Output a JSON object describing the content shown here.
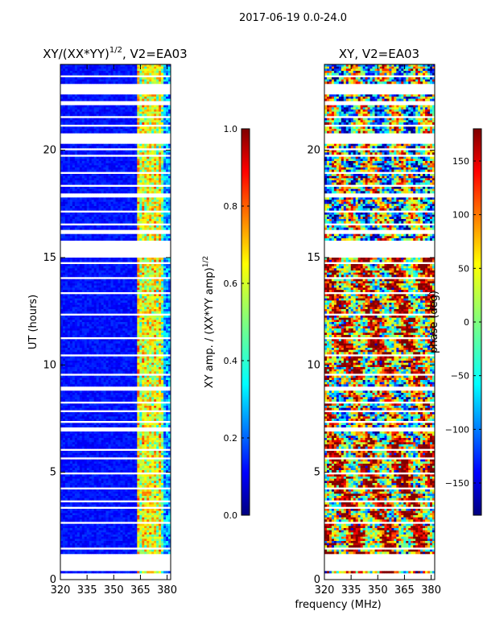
{
  "chart_data": {
    "type": "heatmap",
    "suptitle": "2017-06-19 0.0-24.0",
    "xlabel": "frequency (MHz)",
    "panels": [
      {
        "id": "amp",
        "title": "XY/(XX*YY)",
        "title_sup": "1/2",
        "title_suffix": ", V2=EA03",
        "ylabel": "UT (hours)",
        "xlim": [
          320,
          382
        ],
        "ylim": [
          0,
          24
        ],
        "xticks": [
          320,
          335,
          350,
          365,
          380
        ],
        "yticks": [
          0,
          5,
          10,
          15,
          20
        ],
        "colorbar": {
          "label": "XY amp. / (XX*YY amp)",
          "label_sup": "1/2",
          "range": [
            0.0,
            1.0
          ],
          "ticks": [
            "0.0",
            "0.2",
            "0.4",
            "0.6",
            "0.8",
            "1.0"
          ],
          "tick_values": [
            0.0,
            0.2,
            0.4,
            0.6,
            0.8,
            1.0
          ],
          "colormap": "jet"
        }
      },
      {
        "id": "phase",
        "title": "XY, V2=EA03",
        "ylabel": "phase (deg)",
        "xlim": [
          320,
          382
        ],
        "ylim": [
          0,
          24
        ],
        "xticks": [
          320,
          335,
          350,
          365,
          380
        ],
        "yticks": [
          0,
          5,
          10,
          15,
          20
        ],
        "colorbar": {
          "label": "phase (deg)",
          "range": [
            -180,
            180
          ],
          "ticks": [
            "−150",
            "−100",
            "−50",
            "0",
            "50",
            "100",
            "150"
          ],
          "tick_values": [
            -150,
            -100,
            -50,
            0,
            50,
            100,
            150
          ],
          "colormap": "jet"
        }
      }
    ],
    "blank_ut_intervals": [
      [
        0.0,
        0.3
      ],
      [
        0.4,
        1.2
      ],
      [
        1.4,
        1.5
      ],
      [
        2.6,
        2.7
      ],
      [
        3.3,
        3.4
      ],
      [
        3.6,
        3.7
      ],
      [
        4.2,
        4.3
      ],
      [
        4.9,
        5.0
      ],
      [
        5.6,
        5.7
      ],
      [
        6.0,
        6.1
      ],
      [
        6.9,
        7.1
      ],
      [
        7.3,
        7.4
      ],
      [
        7.8,
        7.9
      ],
      [
        8.2,
        8.3
      ],
      [
        8.8,
        9.0
      ],
      [
        9.5,
        9.6
      ],
      [
        10.4,
        10.5
      ],
      [
        11.2,
        11.3
      ],
      [
        12.3,
        12.4
      ],
      [
        13.3,
        13.4
      ],
      [
        14.0,
        14.1
      ],
      [
        14.7,
        14.8
      ],
      [
        15.0,
        15.8
      ],
      [
        16.1,
        16.3
      ],
      [
        16.5,
        16.6
      ],
      [
        17.1,
        17.2
      ],
      [
        17.8,
        18.0
      ],
      [
        18.3,
        18.4
      ],
      [
        18.9,
        19.0
      ],
      [
        19.7,
        19.8
      ],
      [
        20.0,
        20.1
      ],
      [
        20.3,
        20.8
      ],
      [
        21.1,
        21.2
      ],
      [
        21.5,
        21.6
      ],
      [
        22.1,
        22.3
      ],
      [
        22.6,
        23.1
      ],
      [
        23.4,
        23.5
      ]
    ]
  }
}
